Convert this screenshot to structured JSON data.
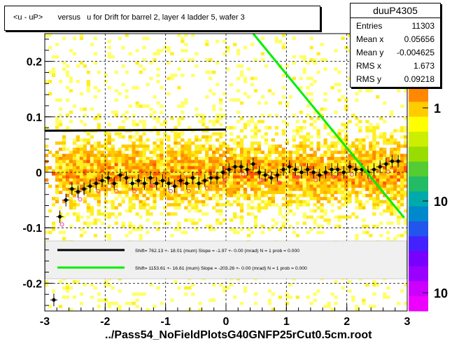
{
  "title": "<u - uP>       versus   u for Drift for barrel 2, layer 4 ladder 5, wafer 3",
  "stats": {
    "name": "duuP4305",
    "rows": [
      {
        "label": "Entries",
        "value": "11303"
      },
      {
        "label": "Mean x",
        "value": "0.05656"
      },
      {
        "label": "Mean y",
        "value": "-0.004625"
      },
      {
        "label": "RMS x",
        "value": "1.673"
      },
      {
        "label": "RMS y",
        "value": "0.09218"
      }
    ]
  },
  "footer": "../Pass54_NoFieldPlotsG40GNFP25rCut0.5cm.root",
  "legend": [
    {
      "color": "#000000",
      "text": "Shift=   762.13 +- 18.01 (mum) Slope =   -1.97 +- 0.00 (mrad)  N = 1 prob = 0.000"
    },
    {
      "color": "#00ee00",
      "text": "Shift=  1153.61 +- 16.61 (mum) Slope =  -203.26 +- 0.00 (mrad)  N = 1 prob = 0.000"
    }
  ],
  "chart_data": {
    "type": "heatmap",
    "title": "<u - uP>       versus   u for Drift for barrel 2, layer 4 ladder 5, wafer 3",
    "xlabel": "",
    "ylabel": "",
    "xlim": [
      -3,
      3
    ],
    "ylim": [
      -0.25,
      0.25
    ],
    "x_ticks": [
      "-3",
      "-2",
      "-1",
      "0",
      "1",
      "2",
      "3"
    ],
    "y_ticks": [
      "-0.2",
      "-0.1",
      "0",
      "0.1",
      "0.2"
    ],
    "colorbar_ticks": [
      "1",
      "10",
      "10"
    ],
    "grid": true,
    "profile": {
      "x": [
        -2.85,
        -2.75,
        -2.65,
        -2.55,
        -2.45,
        -2.35,
        -2.25,
        -2.15,
        -2.05,
        -1.95,
        -1.85,
        -1.75,
        -1.65,
        -1.55,
        -1.45,
        -1.35,
        -1.25,
        -1.15,
        -1.05,
        -0.95,
        -0.85,
        -0.75,
        -0.65,
        -0.55,
        -0.45,
        -0.35,
        -0.25,
        -0.15,
        -0.05,
        0.05,
        0.15,
        0.25,
        0.35,
        0.45,
        0.55,
        0.65,
        0.75,
        0.85,
        0.95,
        1.05,
        1.15,
        1.25,
        1.35,
        1.45,
        1.55,
        1.65,
        1.75,
        1.85,
        1.95,
        2.05,
        2.15,
        2.25,
        2.35,
        2.45,
        2.55,
        2.65,
        2.75,
        2.85
      ],
      "y": [
        -0.23,
        -0.08,
        -0.05,
        -0.03,
        -0.035,
        -0.03,
        -0.025,
        -0.02,
        -0.015,
        -0.01,
        -0.02,
        -0.005,
        -0.01,
        -0.02,
        -0.015,
        -0.02,
        -0.01,
        -0.02,
        -0.015,
        -0.02,
        -0.025,
        -0.015,
        -0.02,
        -0.01,
        -0.02,
        -0.015,
        -0.01,
        -0.01,
        0.0,
        0.005,
        0.01,
        0.01,
        0.005,
        0.015,
        0.0,
        -0.005,
        -0.01,
        -0.005,
        0.005,
        0.01,
        0.005,
        0.0,
        0.005,
        0.0,
        -0.005,
        0.0,
        0.005,
        0.005,
        0.0,
        0.01,
        0.005,
        0.005,
        0.0,
        0.005,
        0.01,
        0.015,
        0.02,
        0.02
      ]
    },
    "fit_lines": [
      {
        "color": "#000000",
        "x": [
          -3.0,
          0.0
        ],
        "y": [
          0.075,
          0.077
        ]
      },
      {
        "color": "#00ee00",
        "x": [
          0.45,
          2.95
        ],
        "y": [
          0.25,
          -0.082
        ]
      }
    ]
  }
}
